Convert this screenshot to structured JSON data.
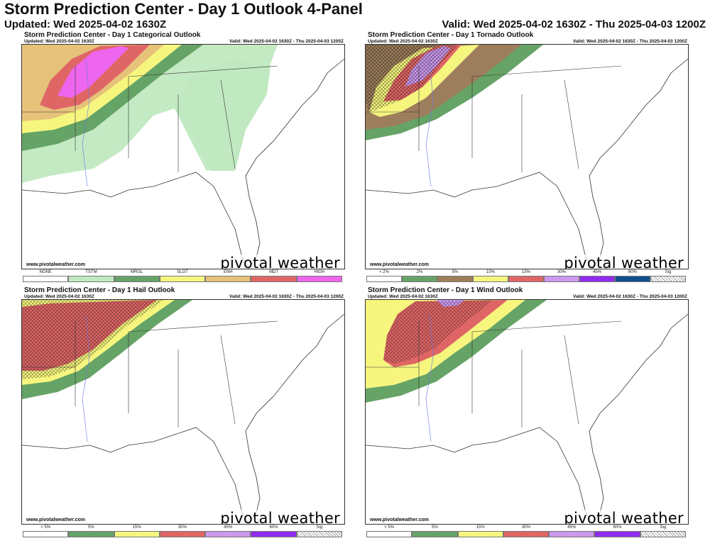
{
  "header": {
    "title": "Storm Prediction Center - Day 1 Outlook 4-Panel",
    "updated": "Updated: Wed 2025-04-02 1630Z",
    "valid": "Valid: Wed 2025-04-02 1630Z - Thu 2025-04-03 1200Z"
  },
  "panels": [
    {
      "title": "Storm Prediction Center - Day 1 Categorical Outlook",
      "updated": "Updated: Wed 2025-04-02 1630Z",
      "valid": "Valid: Wed 2025-04-02 1630Z - Thu 2025-04-03 1200Z",
      "credit": "www.pivotalweather.com",
      "brand": "pivotal weather",
      "legend": [
        {
          "label": "NONE",
          "color": "#ffffff"
        },
        {
          "label": "TSTM",
          "color": "#c1e9c1"
        },
        {
          "label": "MRGL",
          "color": "#66a366"
        },
        {
          "label": "SLGT",
          "color": "#f6f67f"
        },
        {
          "label": "ENH",
          "color": "#e6c27a"
        },
        {
          "label": "MDT",
          "color": "#e06666"
        },
        {
          "label": "HIGH",
          "color": "#ee66ee"
        }
      ]
    },
    {
      "title": "Storm Prediction Center - Day 1 Tornado Outlook",
      "updated": "Updated: Wed 2025-04-02 1630Z",
      "valid": "Valid: Wed 2025-04-02 1630Z - Thu 2025-04-03 1200Z",
      "credit": "www.pivotalweather.com",
      "brand": "pivotal weather",
      "legend": [
        {
          "label": "< 2%",
          "color": "#ffffff"
        },
        {
          "label": "2%",
          "color": "#66a366"
        },
        {
          "label": "5%",
          "color": "#9d7e5c"
        },
        {
          "label": "10%",
          "color": "#f6f67f"
        },
        {
          "label": "15%",
          "color": "#e06666"
        },
        {
          "label": "30%",
          "color": "#cc99ee"
        },
        {
          "label": "45%",
          "color": "#912cee"
        },
        {
          "label": "60%",
          "color": "#104e8b"
        },
        {
          "label": "Sig",
          "color": "#dddddd"
        }
      ]
    },
    {
      "title": "Storm Prediction Center - Day 1 Hail Outlook",
      "updated": "Updated: Wed 2025-04-02 1630Z",
      "valid": "Valid: Wed 2025-04-02 1630Z - Thu 2025-04-03 1200Z",
      "credit": "www.pivotalweather.com",
      "brand": "pivotal weather",
      "legend": [
        {
          "label": "< 5%",
          "color": "#ffffff"
        },
        {
          "label": "5%",
          "color": "#66a366"
        },
        {
          "label": "15%",
          "color": "#f6f67f"
        },
        {
          "label": "30%",
          "color": "#e06666"
        },
        {
          "label": "45%",
          "color": "#cc99ee"
        },
        {
          "label": "60%",
          "color": "#912cee"
        },
        {
          "label": "Sig",
          "color": "#dddddd"
        }
      ]
    },
    {
      "title": "Storm Prediction Center - Day 1 Wind Outlook",
      "updated": "Updated: Wed 2025-04-02 1630Z",
      "valid": "Valid: Wed 2025-04-02 1630Z - Thu 2025-04-03 1200Z",
      "credit": "www.pivotalweather.com",
      "brand": "pivotal weather",
      "legend": [
        {
          "label": "< 5%",
          "color": "#ffffff"
        },
        {
          "label": "5%",
          "color": "#66a366"
        },
        {
          "label": "15%",
          "color": "#f6f67f"
        },
        {
          "label": "30%",
          "color": "#e06666"
        },
        {
          "label": "45%",
          "color": "#cc99ee"
        },
        {
          "label": "60%",
          "color": "#912cee"
        },
        {
          "label": "Sig",
          "color": "#dddddd"
        }
      ]
    }
  ]
}
